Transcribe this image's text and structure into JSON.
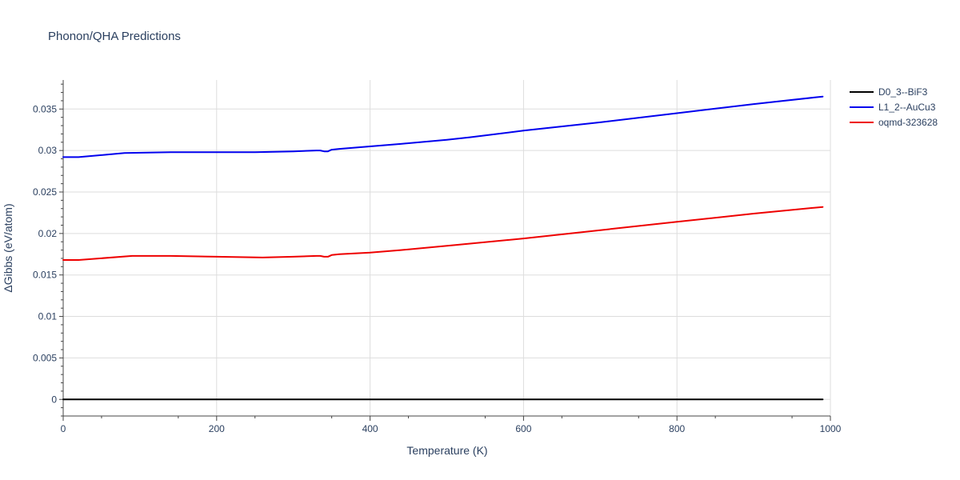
{
  "chart_data": {
    "type": "line",
    "title": "Phonon/QHA Predictions",
    "xlabel": "Temperature (K)",
    "ylabel": "ΔGibbs (eV/atom)",
    "xlim": [
      0,
      1000
    ],
    "ylim": [
      -0.002,
      0.0385
    ],
    "x_ticks": [
      0,
      200,
      400,
      600,
      800,
      1000
    ],
    "x_tick_labels": [
      "0",
      "200",
      "400",
      "600",
      "800",
      "1000"
    ],
    "y_ticks": [
      0,
      0.005,
      0.01,
      0.015,
      0.02,
      0.025,
      0.03,
      0.035
    ],
    "y_tick_labels": [
      "0",
      "0.005",
      "0.01",
      "0.015",
      "0.02",
      "0.025",
      "0.03",
      "0.035"
    ],
    "grid": true,
    "legend_position": "top-right",
    "series": [
      {
        "name": "D0_3--BiF3",
        "color": "#000000",
        "x": [
          0,
          990
        ],
        "y": [
          0,
          0
        ]
      },
      {
        "name": "L1_2--AuCu3",
        "color": "#0000ee",
        "x": [
          0,
          20,
          80,
          140,
          200,
          250,
          300,
          330,
          335,
          340,
          345,
          350,
          360,
          400,
          440,
          500,
          530,
          600,
          700,
          800,
          900,
          990
        ],
        "y": [
          0.0292,
          0.0292,
          0.0297,
          0.0298,
          0.0298,
          0.0298,
          0.0299,
          0.03,
          0.03,
          0.0299,
          0.0299,
          0.0301,
          0.0302,
          0.0305,
          0.0308,
          0.0313,
          0.0316,
          0.0324,
          0.0334,
          0.0345,
          0.0356,
          0.0365
        ]
      },
      {
        "name": "oqmd-323628",
        "color": "#ee0000",
        "x": [
          0,
          20,
          90,
          140,
          200,
          260,
          300,
          330,
          335,
          340,
          345,
          350,
          360,
          400,
          440,
          510,
          600,
          700,
          800,
          900,
          990
        ],
        "y": [
          0.0168,
          0.0168,
          0.0173,
          0.0173,
          0.0172,
          0.0171,
          0.0172,
          0.0173,
          0.0173,
          0.0172,
          0.0172,
          0.0174,
          0.0175,
          0.0177,
          0.018,
          0.0186,
          0.0194,
          0.0204,
          0.0214,
          0.0224,
          0.0232
        ]
      }
    ]
  }
}
